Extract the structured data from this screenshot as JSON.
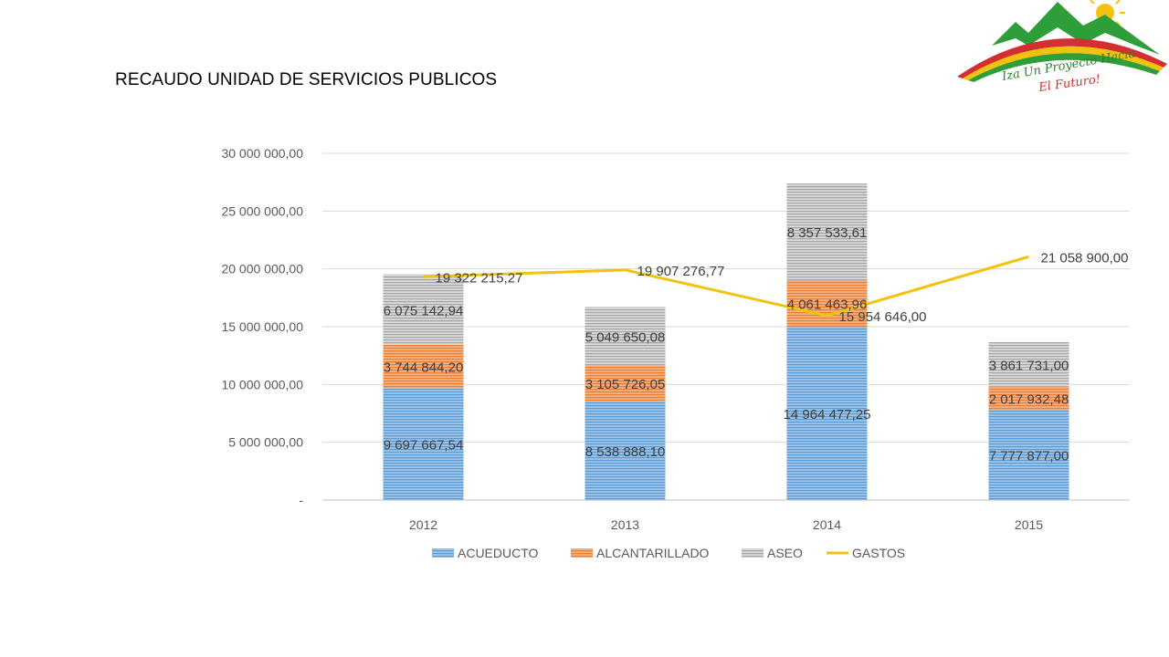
{
  "slide": {
    "title": "RECAUDO UNIDAD DE SERVICIOS PUBLICOS",
    "logo_text_line1": "Iza Un Proyecto Hacia",
    "logo_text_line2": "El Futuro!"
  },
  "colors": {
    "acueducto": "#5B9BD5",
    "alcantarillado": "#ED7D31",
    "aseo": "#A5A5A5",
    "gastos": "#F4C20D",
    "gridline": "#D9D9D9",
    "axis_text": "#595959",
    "label_text": "#404040"
  },
  "chart_data": {
    "type": "bar",
    "stacked": true,
    "title": "",
    "xlabel": "",
    "ylabel": "",
    "categories": [
      "2012",
      "2013",
      "2014",
      "2015"
    ],
    "ylim": [
      0,
      30000000
    ],
    "yticks": [
      0,
      5000000,
      10000000,
      15000000,
      20000000,
      25000000,
      30000000
    ],
    "ytick_labels": [
      "-",
      "5 000 000,00",
      "10 000 000,00",
      "15 000 000,00",
      "20 000 000,00",
      "25 000 000,00",
      "30 000 000,00"
    ],
    "grid": true,
    "legend_position": "bottom",
    "series": [
      {
        "name": "ACUEDUCTO",
        "type": "bar",
        "color": "#5B9BD5",
        "values": [
          9697667.54,
          8538888.1,
          14964477.25,
          7777877.0
        ],
        "labels": [
          "9 697 667,54",
          "8 538 888,10",
          "14 964 477,25",
          "7 777 877,00"
        ]
      },
      {
        "name": "ALCANTARILLADO",
        "type": "bar",
        "color": "#ED7D31",
        "values": [
          3744844.2,
          3105726.05,
          4061463.96,
          2017932.48
        ],
        "labels": [
          "3 744 844,20",
          "3 105 726,05",
          "4 061 463,96",
          "2 017 932,48"
        ]
      },
      {
        "name": "ASEO",
        "type": "bar",
        "color": "#A5A5A5",
        "values": [
          6075142.94,
          5049650.08,
          8357533.61,
          3861731.0
        ],
        "labels": [
          "6 075 142,94",
          "5 049 650,08",
          "8 357 533,61",
          "3 861 731,00"
        ]
      },
      {
        "name": "GASTOS",
        "type": "line",
        "color": "#F4C20D",
        "values": [
          19322215.27,
          19907276.77,
          15954646.0,
          21058900.0
        ],
        "labels": [
          "19 322 215,27",
          "19 907 276,77",
          "15 954 646,00",
          "21 058 900,00"
        ]
      }
    ]
  }
}
